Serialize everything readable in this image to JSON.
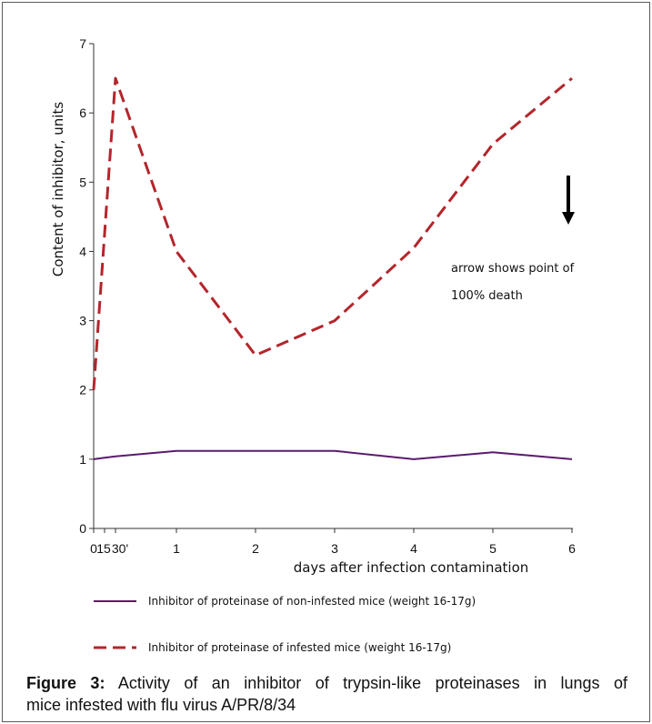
{
  "chart_data": {
    "type": "line",
    "x": [
      "0",
      "15",
      "30'",
      "1",
      "2",
      "3",
      "4",
      "5",
      "6"
    ],
    "xlabel": "days after infection contamination",
    "ylabel": "Content of inhibitor, units",
    "ylim": [
      0,
      7
    ],
    "y_ticks": [
      0,
      1,
      2,
      3,
      4,
      5,
      6,
      7
    ],
    "grid": false,
    "legend": "bottom",
    "series": [
      {
        "name": "Inhibitor of proteinase of non-infested mice (weight 16-17g)",
        "values": [
          1.0,
          1.02,
          1.04,
          1.12,
          1.12,
          1.12,
          1.0,
          1.1,
          1.0
        ],
        "color": "#5b1a6e",
        "dashed": false
      },
      {
        "name": "Inhibitor of proteinase of infested mice (weight 16-17g)",
        "values": [
          2.0,
          4.25,
          6.5,
          4.0,
          2.5,
          3.0,
          4.05,
          5.55,
          6.5
        ],
        "color": "#b3262c",
        "dashed": true
      }
    ],
    "annotation": {
      "lines": [
        "arrow shows point of",
        "100% death"
      ],
      "arrow_icon": "down-arrow"
    }
  },
  "caption": {
    "label": "Figure 3:",
    "line1": "Activity of an inhibitor of trypsin-like proteinases in lungs of",
    "line2": "mice infested with flu virus A/PR/8/34"
  }
}
